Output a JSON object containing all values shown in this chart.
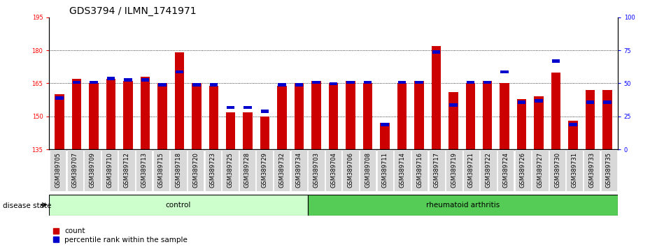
{
  "title": "GDS3794 / ILMN_1741971",
  "samples": [
    "GSM389705",
    "GSM389707",
    "GSM389709",
    "GSM389710",
    "GSM389712",
    "GSM389713",
    "GSM389715",
    "GSM389718",
    "GSM389720",
    "GSM389723",
    "GSM389725",
    "GSM389728",
    "GSM389729",
    "GSM389732",
    "GSM389734",
    "GSM389703",
    "GSM389704",
    "GSM389706",
    "GSM389708",
    "GSM389711",
    "GSM389714",
    "GSM389716",
    "GSM389717",
    "GSM389719",
    "GSM389721",
    "GSM389722",
    "GSM389724",
    "GSM389726",
    "GSM389727",
    "GSM389730",
    "GSM389731",
    "GSM389733",
    "GSM389735"
  ],
  "count_values": [
    160,
    167,
    165,
    167,
    166,
    168,
    165,
    179,
    165,
    164,
    152,
    152,
    150,
    164,
    165,
    166,
    165,
    166,
    165,
    147,
    165,
    166,
    182,
    161,
    165,
    166,
    165,
    158,
    159,
    170,
    148,
    162,
    162
  ],
  "percentile_values": [
    40,
    52,
    52,
    55,
    54,
    54,
    50,
    60,
    50,
    50,
    33,
    33,
    30,
    50,
    50,
    52,
    51,
    52,
    52,
    20,
    52,
    52,
    75,
    35,
    52,
    52,
    60,
    37,
    38,
    68,
    20,
    37,
    37
  ],
  "group_labels": [
    "control",
    "rheumatoid arthritis"
  ],
  "group_sizes": [
    15,
    18
  ],
  "group_colors": [
    "#ccffcc",
    "#55cc55"
  ],
  "bar_color_red": "#cc0000",
  "bar_color_blue": "#0000cc",
  "ylim_left": [
    135,
    195
  ],
  "ylim_right": [
    0,
    100
  ],
  "yticks_left": [
    135,
    150,
    165,
    180,
    195
  ],
  "yticks_right": [
    0,
    25,
    50,
    75,
    100
  ],
  "grid_values": [
    150,
    165,
    180
  ],
  "title_fontsize": 10,
  "tick_fontsize": 6,
  "label_fontsize": 7.5
}
